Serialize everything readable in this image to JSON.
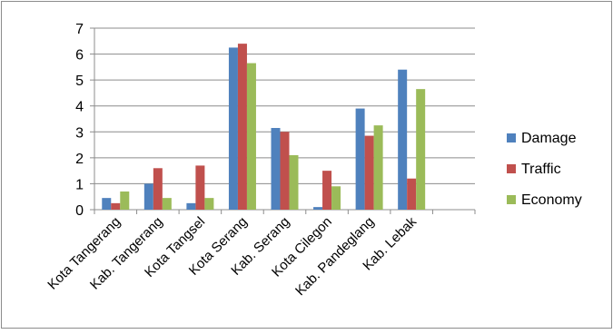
{
  "chart_data": {
    "type": "bar",
    "categories": [
      "Kota Tangerang",
      "Kab. Tangerang",
      "Kota Tangsel",
      "Kota Serang",
      "Kab. Serang",
      "Kota Cilegon",
      "Kab. Pandeglang",
      "Kab. Lebak",
      ""
    ],
    "series": [
      {
        "name": "Damage",
        "color": "#4F81BD",
        "values": [
          0.45,
          1.0,
          0.25,
          6.25,
          3.15,
          0.1,
          3.9,
          5.4,
          null
        ]
      },
      {
        "name": "Traffic",
        "color": "#C0504D",
        "values": [
          0.25,
          1.6,
          1.7,
          6.4,
          3.0,
          1.5,
          2.85,
          1.2,
          null
        ]
      },
      {
        "name": "Economy",
        "color": "#9BBB59",
        "values": [
          0.7,
          0.45,
          0.45,
          5.65,
          2.1,
          0.9,
          3.25,
          4.65,
          null
        ]
      }
    ],
    "ylim": [
      0,
      7
    ],
    "yticks": [
      0,
      1,
      2,
      3,
      4,
      5,
      6,
      7
    ],
    "grid": true,
    "legend_position": "right",
    "title": "",
    "xlabel": "",
    "ylabel": ""
  }
}
